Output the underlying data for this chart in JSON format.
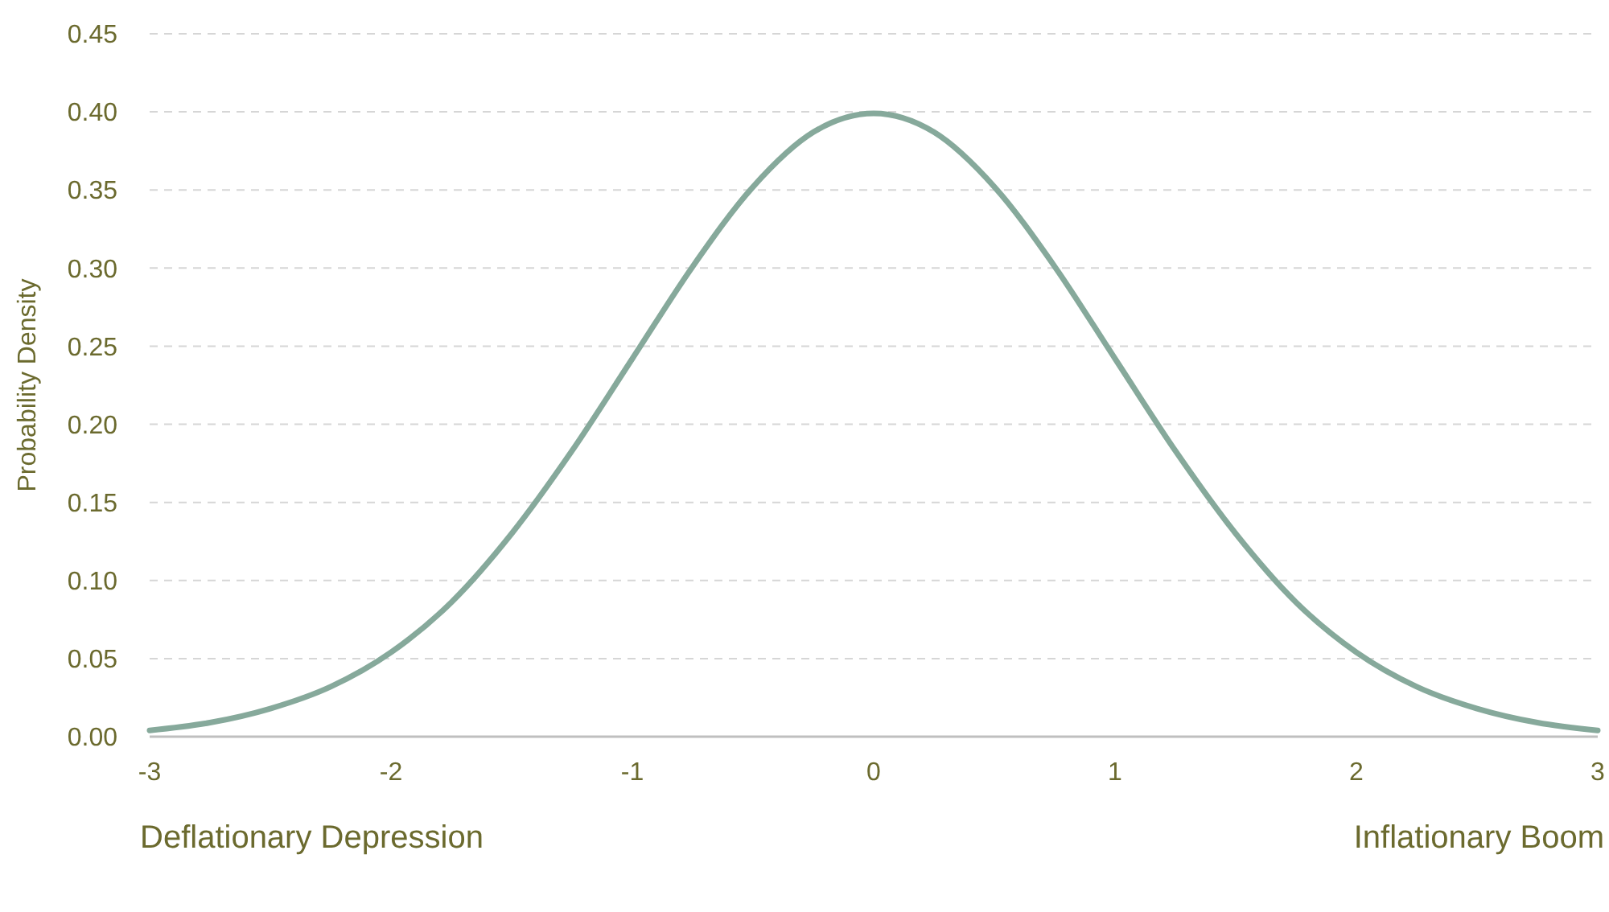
{
  "chart_data": {
    "type": "line",
    "ylabel": "Probability Density",
    "annotations": [
      "Deflationary Depression",
      "Inflationary Boom"
    ],
    "x": [
      -3,
      -2.75,
      -2.5,
      -2.25,
      -2,
      -1.75,
      -1.5,
      -1.25,
      -1,
      -0.75,
      -0.5,
      -0.25,
      0,
      0.25,
      0.5,
      0.75,
      1,
      1.25,
      1.5,
      1.75,
      2,
      2.25,
      2.5,
      2.75,
      3
    ],
    "series": [
      {
        "color": "#86a99b",
        "values": [
          0.004,
          0.009,
          0.018,
          0.032,
          0.054,
          0.086,
          0.13,
          0.183,
          0.242,
          0.301,
          0.352,
          0.387,
          0.399,
          0.387,
          0.352,
          0.301,
          0.242,
          0.183,
          0.13,
          0.086,
          0.054,
          0.032,
          0.018,
          0.009,
          0.004
        ]
      }
    ],
    "xlim": [
      -3,
      3
    ],
    "xticks": [
      -3,
      -2,
      -1,
      0,
      1,
      2,
      3
    ],
    "ylim": [
      0,
      0.45
    ],
    "yticks": [
      {
        "value": 0,
        "label": "0.00"
      },
      {
        "value": 0.05,
        "label": "0.05"
      },
      {
        "value": 0.1,
        "label": "0.10"
      },
      {
        "value": 0.15,
        "label": "0.15"
      },
      {
        "value": 0.2,
        "label": "0.20"
      },
      {
        "value": 0.25,
        "label": "0.25"
      },
      {
        "value": 0.3,
        "label": "0.30"
      },
      {
        "value": 0.35,
        "label": "0.35"
      },
      {
        "value": 0.4,
        "label": "0.40"
      },
      {
        "value": 0.45,
        "label": "0.45"
      }
    ],
    "grid": "y",
    "marker": "none",
    "line_style": "solid"
  }
}
